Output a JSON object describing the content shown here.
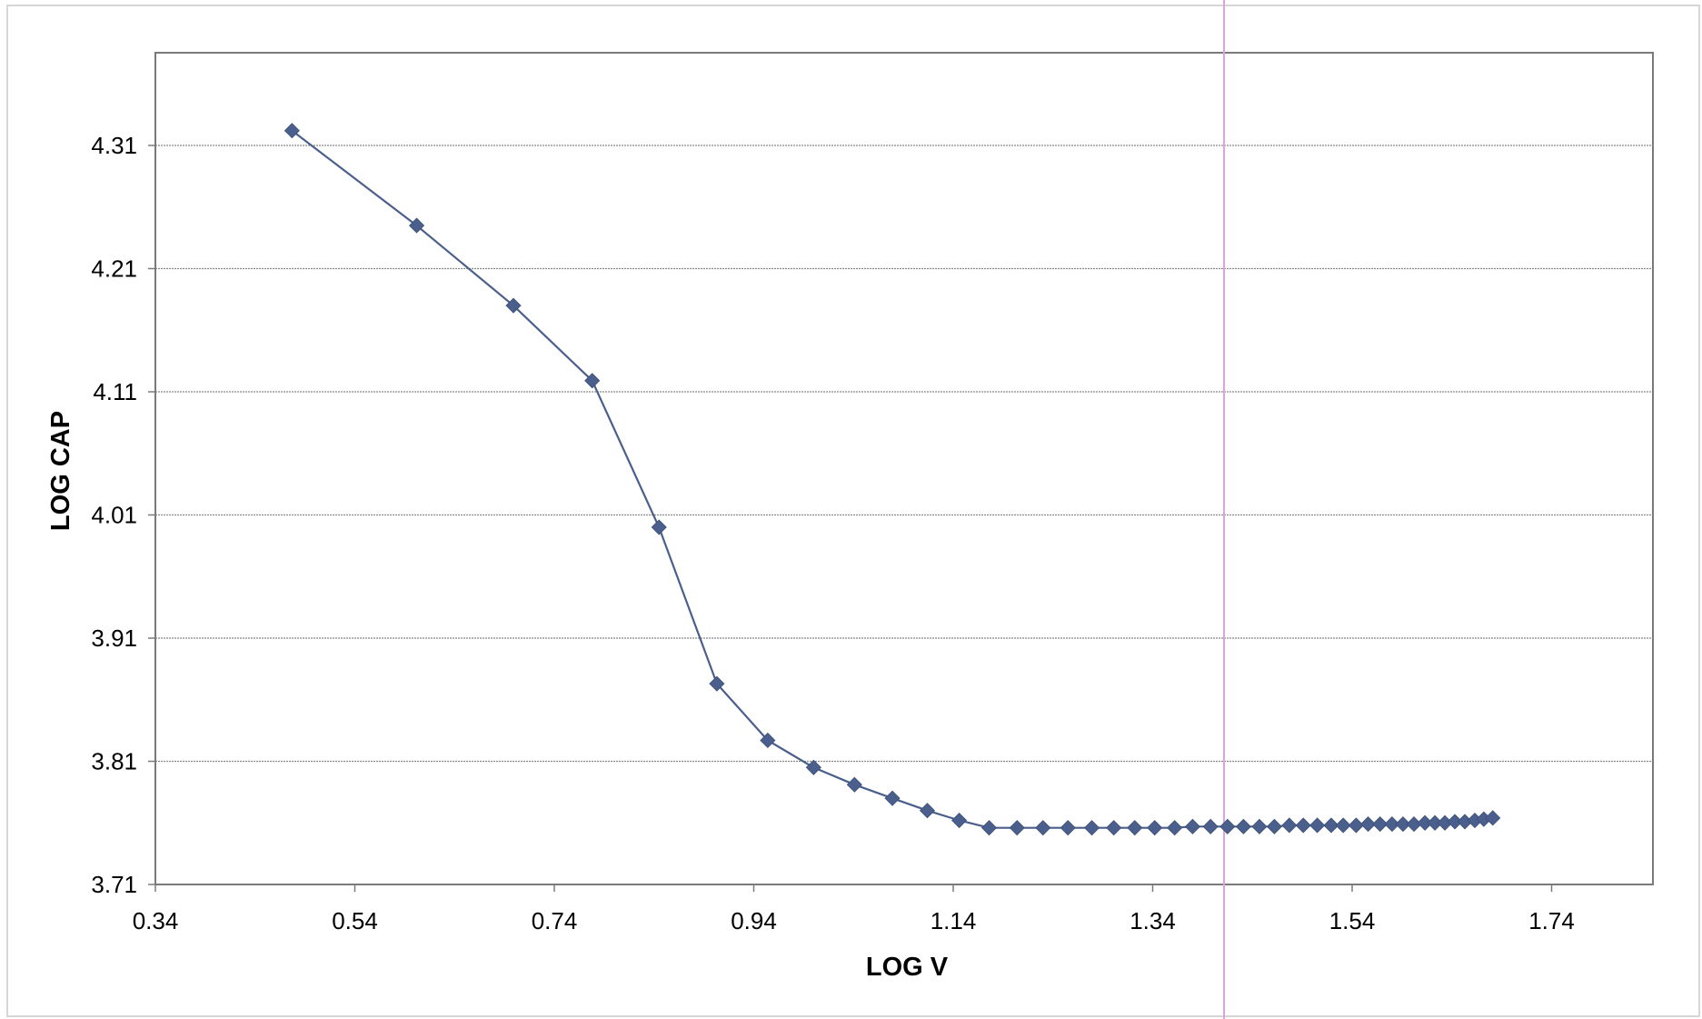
{
  "colors": {
    "series": "#4a5f8c",
    "gridline": "#888888",
    "frame": "#7a7a7a",
    "page_border": "#d6d6d6",
    "stray_vertical_line": "#d9a6dc"
  },
  "chart_data": {
    "type": "line",
    "title": "",
    "xlabel": "LOG V",
    "ylabel": "LOG CAP",
    "xlim": [
      0.34,
      1.84
    ],
    "ylim": [
      3.71,
      4.39
    ],
    "xticks": [
      "0.34",
      "0.54",
      "0.74",
      "0.94",
      "1.14",
      "1.34",
      "1.54",
      "1.74"
    ],
    "yticks": [
      "3.71",
      "3.81",
      "3.91",
      "4.01",
      "4.11",
      "4.21",
      "4.31"
    ],
    "grid": "horizontal",
    "legend": "none",
    "marker": "diamond",
    "series": [
      {
        "x": [
          0.477,
          0.602,
          0.699,
          0.778,
          0.845,
          0.903,
          0.954,
          1.0,
          1.041,
          1.079,
          1.114,
          1.146,
          1.176,
          1.204,
          1.23,
          1.255,
          1.279,
          1.301,
          1.322,
          1.342,
          1.362,
          1.38,
          1.398,
          1.415,
          1.431,
          1.447,
          1.462,
          1.477,
          1.491,
          1.505,
          1.519,
          1.531,
          1.544,
          1.556,
          1.568,
          1.58,
          1.591,
          1.602,
          1.613,
          1.623,
          1.633,
          1.643,
          1.653,
          1.663,
          1.672,
          1.681
        ],
        "y": [
          4.322,
          4.245,
          4.18,
          4.119,
          4.0,
          3.873,
          3.827,
          3.805,
          3.791,
          3.78,
          3.77,
          3.762,
          3.756,
          3.756,
          3.756,
          3.756,
          3.756,
          3.756,
          3.756,
          3.756,
          3.756,
          3.757,
          3.757,
          3.757,
          3.757,
          3.757,
          3.757,
          3.758,
          3.758,
          3.758,
          3.758,
          3.758,
          3.758,
          3.759,
          3.759,
          3.759,
          3.759,
          3.759,
          3.76,
          3.76,
          3.76,
          3.761,
          3.761,
          3.762,
          3.763,
          3.764
        ]
      }
    ]
  }
}
